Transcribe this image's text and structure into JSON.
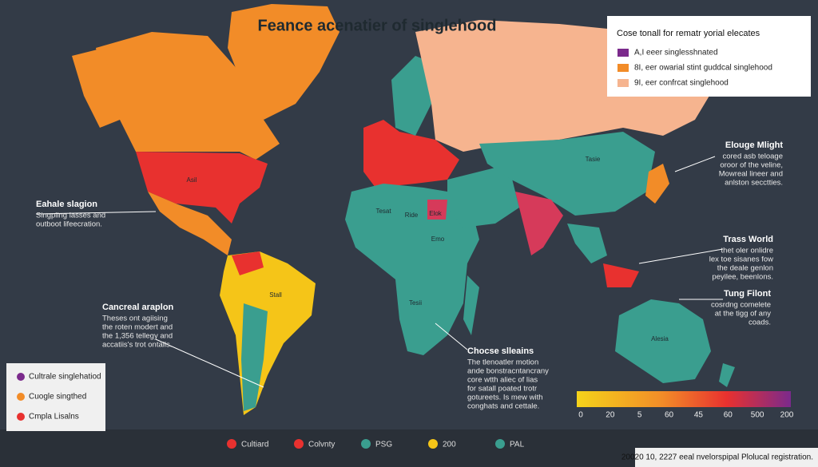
{
  "title": "Feance acenatier of singlehood",
  "legend_top": {
    "title": "Cose tonall for rematr yorial elecates",
    "items": [
      {
        "label": "A,I eeer singlesshnated",
        "color": "#7b2a8c"
      },
      {
        "label": "8I, eer owarial stint guddcal singlehood",
        "color": "#f28c28"
      },
      {
        "label": "9I, eer confrcat singlehood",
        "color": "#f6b48f"
      }
    ]
  },
  "annotations": [
    {
      "heading": "Eahale slagion",
      "lines": [
        "Singpling lasses and",
        "outboot lifeecration."
      ]
    },
    {
      "heading": "Cancreal araplon",
      "lines": [
        "Theses ont agiising",
        "the roten modert and",
        "the 1,356 tellegy and",
        "accatiis's trot ontalls."
      ]
    },
    {
      "heading": "Chocse slleains",
      "lines": [
        "The tlenoatler motion",
        "ande bonstracntancrany",
        "core wtth aliec of lias",
        "for satall poated trotr",
        "gotureets. Is mew with",
        "conghats and cettale."
      ]
    },
    {
      "heading": "Elouge Mlight",
      "lines": [
        "cored asb teloage",
        "oroor of the veline,",
        "Mowreal lineer and",
        "anlston secctties."
      ]
    },
    {
      "heading": "Trass World",
      "lines": [
        "thet oler onlidre",
        "lex toe sisanes fow",
        "the deale genlon",
        "peyilee, beenlons."
      ]
    },
    {
      "heading": "Tung Filont",
      "lines": [
        "cosrdng comelete",
        "at the tigg of any",
        "coads."
      ]
    }
  ],
  "map_labels": [
    "Asil",
    "Stall",
    "Tesat",
    "Ride",
    "Elok",
    "Emo",
    "Tesii",
    "Tasie",
    "Alesia"
  ],
  "legend_bottom_left": [
    {
      "label": "Cultrale singlehatiod",
      "color": "#7b2a8c"
    },
    {
      "label": "Cuogle singthed",
      "color": "#f28c28"
    },
    {
      "label": "Cmpla Lisalns",
      "color": "#e8312f"
    }
  ],
  "legend_bottom": [
    {
      "label": "Cultiard",
      "color": "#e8312f"
    },
    {
      "label": "Colvnty",
      "color": "#e8312f"
    },
    {
      "label": "PSG",
      "color": "#3a9e8f"
    },
    {
      "label": "200",
      "color": "#f5c518"
    },
    {
      "label": "PAL",
      "color": "#3a9e8f"
    }
  ],
  "scale": {
    "ticks": [
      "0",
      "20",
      "5",
      "60",
      "45",
      "60",
      "500",
      "200"
    ]
  },
  "footer": "20020 10, 2227 eeal nvelorspipal Plolucal registration."
}
